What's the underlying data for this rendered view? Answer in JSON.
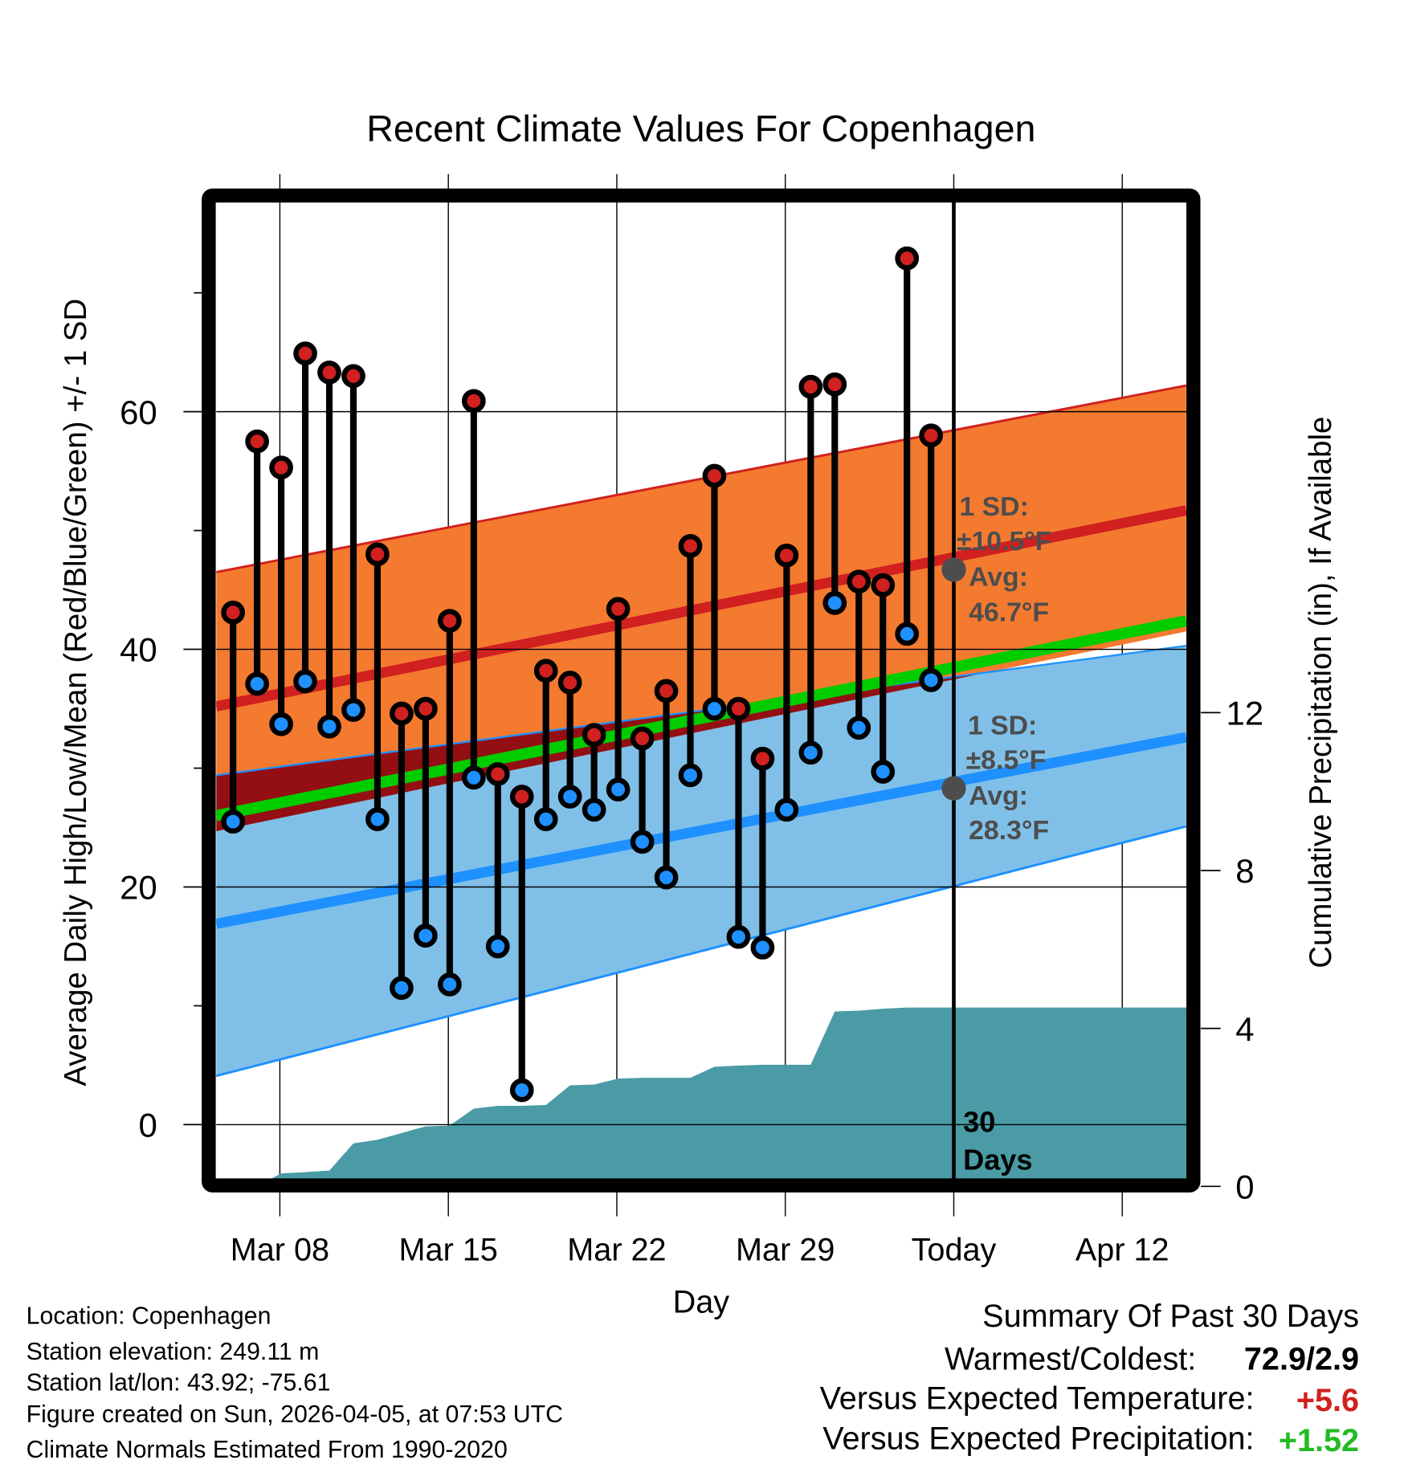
{
  "chart_data": {
    "type": "line",
    "title": "Recent Climate Values For Copenhagen",
    "xlabel": "Day",
    "ylabel": "Average Daily High/Low/Mean (Red/Blue/Green) +/- 1 SD",
    "y2label": "Cumulative Precipitation (in), If Available",
    "ylim": [
      -4.5,
      77.5
    ],
    "y2lim": [
      0,
      24.7
    ],
    "yticks": [
      "0",
      "20",
      "40",
      "60"
    ],
    "y2ticks": [
      "0",
      "4",
      "8",
      "12"
    ],
    "xticks": [
      "Mar 08",
      "Mar 15",
      "Mar 22",
      "Mar 29",
      "Today",
      "Apr 12"
    ],
    "dates": [
      "Mar 06",
      "Mar 07",
      "Mar 08",
      "Mar 09",
      "Mar 10",
      "Mar 11",
      "Mar 12",
      "Mar 13",
      "Mar 14",
      "Mar 15",
      "Mar 16",
      "Mar 17",
      "Mar 18",
      "Mar 19",
      "Mar 20",
      "Mar 21",
      "Mar 22",
      "Mar 23",
      "Mar 24",
      "Mar 25",
      "Mar 26",
      "Mar 27",
      "Mar 28",
      "Mar 29",
      "Mar 30",
      "Mar 31",
      "Apr 01",
      "Apr 02",
      "Apr 03",
      "Apr 04"
    ],
    "series": [
      {
        "name": "Daily High",
        "color": "#d02020",
        "values": [
          43.1,
          57.5,
          55.3,
          64.9,
          63.3,
          63.0,
          48.0,
          34.6,
          35.0,
          42.4,
          60.9,
          29.5,
          27.6,
          38.2,
          37.2,
          32.8,
          43.4,
          32.5,
          36.5,
          48.7,
          54.6,
          35.0,
          30.8,
          47.9,
          62.1,
          62.3,
          45.7,
          45.4,
          72.9,
          58.0
        ]
      },
      {
        "name": "Daily Low",
        "color": "#1e90ff",
        "values": [
          25.5,
          37.1,
          33.7,
          37.3,
          33.5,
          34.9,
          25.7,
          11.5,
          15.9,
          11.8,
          29.2,
          15.0,
          2.9,
          25.7,
          27.6,
          26.5,
          28.2,
          23.8,
          20.8,
          29.4,
          35.0,
          15.8,
          14.9,
          26.5,
          31.3,
          43.9,
          33.4,
          29.7,
          41.3,
          37.4
        ]
      },
      {
        "name": "Cumulative Precipitation (in)",
        "color": "#4a9ba5",
        "values": [
          0,
          0,
          0.33,
          0.36,
          0.4,
          1.09,
          1.18,
          1.35,
          1.52,
          1.54,
          1.97,
          2.04,
          2.04,
          2.06,
          2.56,
          2.58,
          2.73,
          2.75,
          2.75,
          2.75,
          3.03,
          3.06,
          3.08,
          3.08,
          3.08,
          4.43,
          4.45,
          4.5,
          4.53,
          4.53
        ]
      }
    ],
    "normals": {
      "high_mean": [
        35.2,
        51.7
      ],
      "high_upper": [
        46.5,
        62.2
      ],
      "high_lower": [
        24.7,
        41.5
      ],
      "low_mean": [
        16.9,
        32.6
      ],
      "low_upper": [
        29.4,
        40.3
      ],
      "low_lower": [
        4.1,
        25.1
      ],
      "mean": [
        26.0,
        42.4
      ],
      "range_days": [
        -0.7,
        39.6
      ]
    },
    "colors": {
      "high_band": "#f47a2f",
      "high_line": "#d02020",
      "overlap": "#930f14",
      "mean_line": "#00cc00",
      "low_band": "#80c0e8",
      "low_line": "#1e90ff",
      "precip": "#4a9ba5",
      "annotation": "#4d4d4d"
    },
    "annotations": {
      "high": {
        "sd_label": "1 SD:",
        "sd_value": "±10.5°F",
        "avg_label": "Avg:",
        "avg_value": "46.7°F",
        "avg": 46.7
      },
      "low": {
        "sd_label": "1 SD:",
        "sd_value": "±8.5°F",
        "avg_label": "Avg:",
        "avg_value": "28.3°F",
        "avg": 28.3
      },
      "window_num": "30",
      "window_unit": "Days"
    }
  },
  "footer": {
    "location": "Location: Copenhagen",
    "elevation": "Station elevation: 249.11 m",
    "latlon": "Station lat/lon: 43.92; -75.61",
    "created": "Figure created on Sun, 2026-04-05, at 07:53 UTC",
    "normals": "Climate Normals Estimated From 1990-2020"
  },
  "summary": {
    "title": "Summary Of Past 30 Days",
    "warm_cold_label": "Warmest/Coldest:",
    "warm_cold_value": "72.9/2.9",
    "temp_label": "Versus Expected Temperature:",
    "temp_value": "+5.6",
    "temp_color": "#d02020",
    "precip_label": "Versus Expected Precipitation:",
    "precip_value": "+1.52",
    "precip_color": "#22bb22"
  }
}
